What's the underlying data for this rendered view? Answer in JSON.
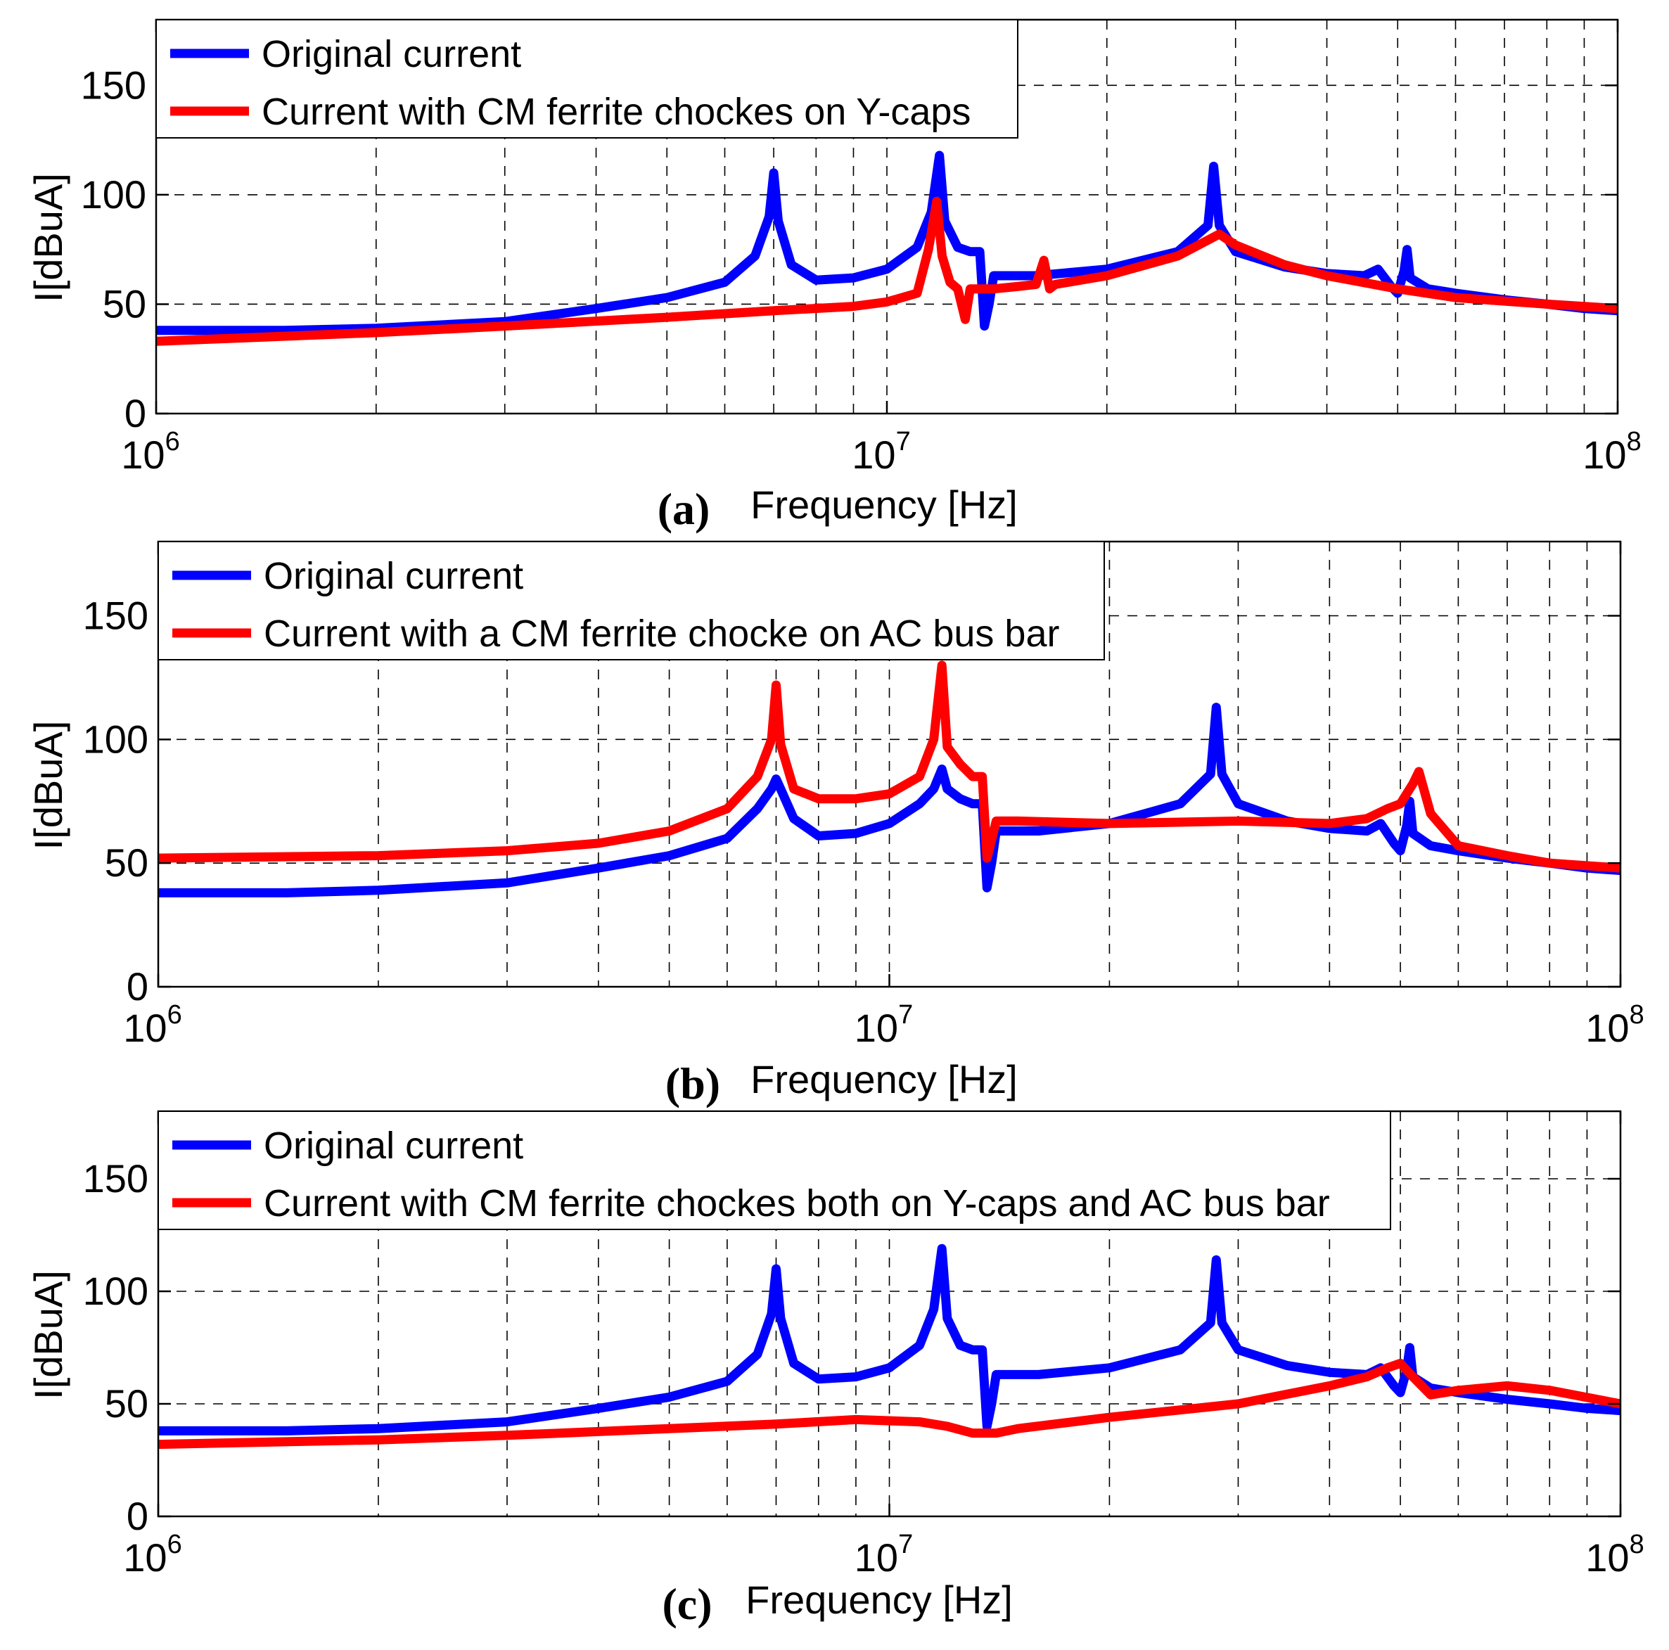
{
  "figure": {
    "colors": {
      "original": "#0000FF",
      "modified": "#FF0000"
    },
    "x_ticks": [
      {
        "base": "10",
        "exp": "6"
      },
      {
        "base": "10",
        "exp": "7"
      },
      {
        "base": "10",
        "exp": "8"
      }
    ]
  },
  "chart_data": [
    {
      "type": "line",
      "panel_label": "(a)",
      "xlabel": "Frequency [Hz]",
      "ylabel": "I[dBuA]",
      "xscale": "log",
      "xlim": [
        1000000,
        100000000
      ],
      "ylim": [
        0,
        180
      ],
      "yticks": [
        0,
        50,
        100,
        150
      ],
      "grid": true,
      "legend_position": "top-left",
      "series": [
        {
          "name": "Original current",
          "color": "#0000FF",
          "x": [
            1000000,
            1500000,
            2000000,
            3000000,
            4000000,
            5000000,
            6000000,
            6600000,
            6900000,
            7000000,
            7100000,
            7400000,
            8000000,
            9000000,
            10000000,
            11000000,
            11500000,
            11800000,
            12000000,
            12500000,
            13000000,
            13400000,
            13600000,
            13800000,
            14000000,
            16000000,
            20000000,
            25000000,
            27500000,
            28000000,
            28500000,
            30000000,
            35000000,
            40000000,
            45000000,
            47000000,
            49000000,
            50000000,
            51000000,
            51500000,
            52000000,
            55000000,
            60000000,
            70000000,
            80000000,
            90000000,
            100000000
          ],
          "y": [
            38,
            38,
            39,
            42,
            48,
            53,
            60,
            72,
            90,
            110,
            88,
            68,
            61,
            62,
            66,
            76,
            92,
            118,
            88,
            76,
            74,
            74,
            40,
            50,
            63,
            63,
            66,
            74,
            86,
            113,
            86,
            74,
            67,
            64,
            63,
            66,
            58,
            55,
            65,
            75,
            62,
            57,
            55,
            52,
            50,
            48,
            47
          ]
        },
        {
          "name": "Current with CM ferrite chockes on Y-caps",
          "color": "#FF0000",
          "x": [
            1000000,
            2000000,
            3000000,
            5000000,
            7000000,
            9000000,
            10000000,
            11000000,
            11400000,
            11700000,
            11900000,
            12200000,
            12500000,
            12800000,
            13000000,
            13400000,
            14000000,
            15000000,
            16000000,
            16400000,
            16700000,
            17000000,
            20000000,
            25000000,
            28500000,
            30000000,
            35000000,
            40000000,
            50000000,
            60000000,
            80000000,
            100000000
          ],
          "y": [
            33,
            37,
            40,
            44,
            47,
            49,
            51,
            55,
            75,
            97,
            72,
            60,
            57,
            43,
            57,
            57,
            57,
            58,
            59,
            70,
            57,
            59,
            63,
            72,
            82,
            77,
            68,
            63,
            57,
            53,
            50,
            48
          ]
        }
      ]
    },
    {
      "type": "line",
      "panel_label": "(b)",
      "xlabel": "Frequency [Hz]",
      "ylabel": "I[dBuA]",
      "xscale": "log",
      "xlim": [
        1000000,
        100000000
      ],
      "ylim": [
        0,
        180
      ],
      "yticks": [
        0,
        50,
        100,
        150
      ],
      "grid": true,
      "legend_position": "top-left",
      "series": [
        {
          "name": "Original current",
          "color": "#0000FF",
          "x": [
            1000000,
            1500000,
            2000000,
            3000000,
            4000000,
            5000000,
            6000000,
            6600000,
            6900000,
            7000000,
            7100000,
            7400000,
            8000000,
            9000000,
            10000000,
            11000000,
            11500000,
            11800000,
            12000000,
            12500000,
            13000000,
            13400000,
            13600000,
            13800000,
            14000000,
            16000000,
            20000000,
            25000000,
            27500000,
            28000000,
            28500000,
            30000000,
            35000000,
            40000000,
            45000000,
            47000000,
            49000000,
            50000000,
            51000000,
            51500000,
            52000000,
            55000000,
            60000000,
            70000000,
            80000000,
            90000000,
            100000000
          ],
          "y": [
            38,
            38,
            39,
            42,
            48,
            53,
            60,
            72,
            80,
            84,
            80,
            68,
            61,
            62,
            66,
            74,
            80,
            88,
            80,
            76,
            74,
            74,
            40,
            50,
            63,
            63,
            66,
            74,
            86,
            113,
            86,
            74,
            67,
            64,
            63,
            66,
            58,
            55,
            65,
            75,
            62,
            57,
            55,
            52,
            50,
            48,
            47
          ]
        },
        {
          "name": "Current with a CM ferrite chocke on AC bus bar",
          "color": "#FF0000",
          "x": [
            1000000,
            2000000,
            3000000,
            4000000,
            5000000,
            6000000,
            6600000,
            6900000,
            7000000,
            7100000,
            7400000,
            8000000,
            9000000,
            10000000,
            11000000,
            11500000,
            11800000,
            12000000,
            12500000,
            13000000,
            13400000,
            13600000,
            14000000,
            15000000,
            20000000,
            30000000,
            40000000,
            45000000,
            48000000,
            50000000,
            52000000,
            53000000,
            55000000,
            60000000,
            70000000,
            80000000,
            100000000
          ],
          "y": [
            52,
            53,
            55,
            58,
            63,
            72,
            85,
            100,
            122,
            98,
            80,
            76,
            76,
            78,
            85,
            100,
            130,
            97,
            90,
            85,
            85,
            52,
            67,
            67,
            66,
            67,
            66,
            68,
            72,
            74,
            82,
            87,
            70,
            57,
            53,
            50,
            48
          ]
        }
      ]
    },
    {
      "type": "line",
      "panel_label": "(c)",
      "xlabel": "Frequency [Hz]",
      "ylabel": "I[dBuA]",
      "xscale": "log",
      "xlim": [
        1000000,
        100000000
      ],
      "ylim": [
        0,
        180
      ],
      "yticks": [
        0,
        50,
        100,
        150
      ],
      "grid": true,
      "legend_position": "top-left",
      "series": [
        {
          "name": "Original current",
          "color": "#0000FF",
          "x": [
            1000000,
            1500000,
            2000000,
            3000000,
            4000000,
            5000000,
            6000000,
            6600000,
            6900000,
            7000000,
            7100000,
            7400000,
            8000000,
            9000000,
            10000000,
            11000000,
            11500000,
            11800000,
            12000000,
            12500000,
            13000000,
            13400000,
            13600000,
            13800000,
            14000000,
            16000000,
            20000000,
            25000000,
            27500000,
            28000000,
            28500000,
            30000000,
            35000000,
            40000000,
            45000000,
            47000000,
            49000000,
            50000000,
            51000000,
            51500000,
            52000000,
            55000000,
            60000000,
            70000000,
            80000000,
            90000000,
            100000000
          ],
          "y": [
            38,
            38,
            39,
            42,
            48,
            53,
            60,
            72,
            90,
            110,
            88,
            68,
            61,
            62,
            66,
            76,
            92,
            119,
            88,
            76,
            74,
            74,
            40,
            50,
            63,
            63,
            66,
            74,
            86,
            114,
            86,
            74,
            67,
            64,
            63,
            66,
            58,
            55,
            65,
            75,
            62,
            57,
            55,
            52,
            50,
            48,
            47
          ]
        },
        {
          "name": "Current with CM ferrite chockes both on Y-caps and AC bus bar",
          "color": "#FF0000",
          "x": [
            1000000,
            2000000,
            3000000,
            5000000,
            7000000,
            9000000,
            11000000,
            12000000,
            13000000,
            14000000,
            15000000,
            20000000,
            30000000,
            40000000,
            45000000,
            48000000,
            50000000,
            52000000,
            55000000,
            60000000,
            70000000,
            80000000,
            100000000
          ],
          "y": [
            32,
            34,
            36,
            39,
            41,
            43,
            42,
            40,
            37,
            37,
            39,
            44,
            50,
            58,
            62,
            66,
            68,
            62,
            54,
            56,
            58,
            56,
            50
          ]
        }
      ]
    }
  ]
}
